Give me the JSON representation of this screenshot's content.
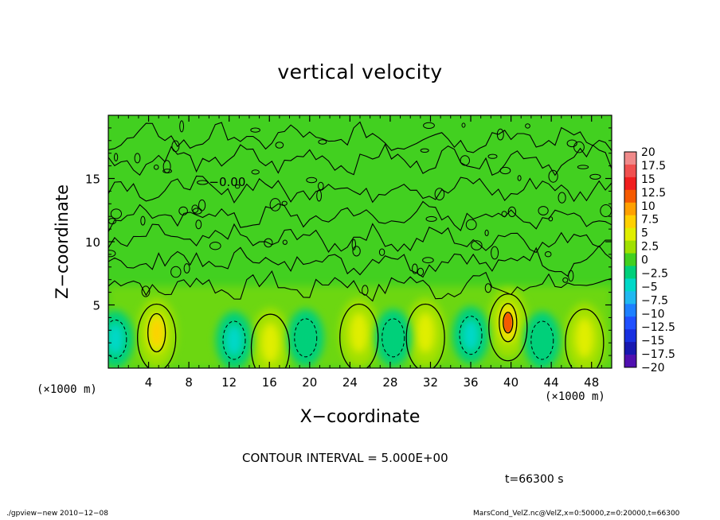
{
  "chart_data": {
    "type": "heatmap",
    "title": "vertical velocity",
    "xlabel": "X−coordinate",
    "ylabel": "Z−coordinate",
    "x_unit_label": "(×1000 m)",
    "xlim": [
      0,
      50
    ],
    "ylim": [
      0,
      20
    ],
    "x_ticks": [
      4,
      8,
      12,
      16,
      20,
      24,
      28,
      32,
      36,
      40,
      44,
      48
    ],
    "y_ticks": [
      5,
      10,
      15
    ],
    "colorbar": {
      "labels": [
        "20",
        "17.5",
        "15",
        "12.5",
        "10",
        "7.5",
        "5",
        "2.5",
        "0",
        "−2.5",
        "−5",
        "−7.5",
        "−10",
        "−12.5",
        "−15",
        "−17.5",
        "−20"
      ],
      "colors": [
        "#f08a8a",
        "#f0504f",
        "#f01e1e",
        "#f55a00",
        "#ffa000",
        "#ffd000",
        "#e0ee00",
        "#a0e000",
        "#42d020",
        "#00d07a",
        "#00d8c8",
        "#20b8f0",
        "#1e80ff",
        "#2050ff",
        "#1830e0",
        "#1818b0",
        "#5010b0"
      ]
    },
    "contour_interval_text": "CONTOUR INTERVAL = 5.000E+00",
    "contour_label": "−0.00",
    "features": [
      {
        "x": 4.8,
        "z": 2.8,
        "value": 7.5
      },
      {
        "x": 16.1,
        "z": 2.0,
        "value": 5
      },
      {
        "x": 24.9,
        "z": 2.8,
        "value": 5
      },
      {
        "x": 31.5,
        "z": 2.8,
        "value": 5
      },
      {
        "x": 39.7,
        "z": 3.6,
        "value": 12.5
      },
      {
        "x": 47.3,
        "z": 2.4,
        "value": 5
      },
      {
        "x": 0.7,
        "z": 2.3,
        "value": -5
      },
      {
        "x": 12.5,
        "z": 2.2,
        "value": -5
      },
      {
        "x": 19.6,
        "z": 2.4,
        "value": -2.5
      },
      {
        "x": 28.3,
        "z": 2.4,
        "value": -2.5
      },
      {
        "x": 36.0,
        "z": 2.6,
        "value": -5
      },
      {
        "x": 43.1,
        "z": 2.2,
        "value": -2.5
      }
    ]
  },
  "annotations": {
    "time": "t=66300 s",
    "footer_left": "./gpview−new  2010−12−08",
    "footer_right": "MarsCond_VelZ.nc@VelZ,x=0:50000,z=0:20000,t=66300"
  }
}
